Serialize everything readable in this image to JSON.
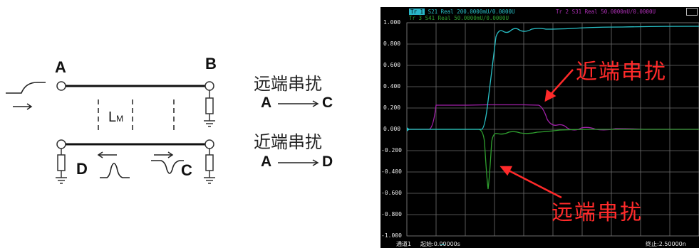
{
  "diagram": {
    "nodes": {
      "a": "A",
      "b": "B",
      "c": "C",
      "d": "D"
    },
    "coupling_label": "L",
    "coupling_subscript": "M",
    "legend": [
      {
        "title": "远端串扰",
        "from": "A",
        "to": "C"
      },
      {
        "title": "近端串扰",
        "from": "A",
        "to": "D"
      }
    ]
  },
  "scope": {
    "header": {
      "tr1_tag": "Tr 1",
      "tr1_text": "S21 Real 200.0000mU/0.0000U",
      "tr2_text": "Tr 2  S31 Real 50.0000mU/0.0000U",
      "tr3_text": "Tr 3  S41 Real 50.0000mU/0.0000U"
    },
    "y_ticks": [
      "1.000",
      "0.800",
      "0.600",
      "0.400",
      "0.200",
      "0.000",
      "-0.200",
      "-0.400",
      "-0.600",
      "-0.800",
      "-1.000"
    ],
    "footer": {
      "channel": "通道1",
      "start": "起始:0.00000s",
      "stop": "终止:2.50000n"
    },
    "annotations": {
      "near_end": "近端串扰",
      "far_end": "远端串扰"
    },
    "colors": {
      "background": "#000000",
      "grid": "#6e6e6e",
      "s21": "#29c2c8",
      "s31": "#a020a8",
      "s41": "#2fa02f",
      "annotation": "#ff2a2a"
    }
  }
}
